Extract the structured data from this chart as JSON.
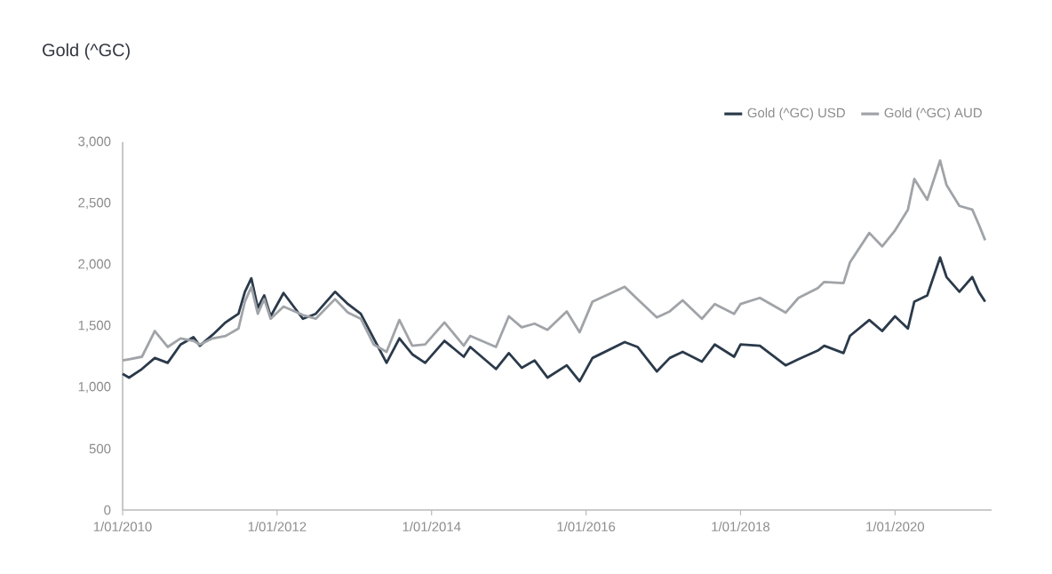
{
  "chart_data": {
    "type": "line",
    "title": "Gold (^GC)",
    "legend": "top right",
    "xlim": [
      "2010-01-01",
      "2021-04-01"
    ],
    "xticks": [
      {
        "value": "2010-01-01",
        "label": "1/01/2010"
      },
      {
        "value": "2012-01-01",
        "label": "1/01/2012"
      },
      {
        "value": "2014-01-01",
        "label": "1/01/2014"
      },
      {
        "value": "2016-01-01",
        "label": "1/01/2016"
      },
      {
        "value": "2018-01-01",
        "label": "1/01/2018"
      },
      {
        "value": "2020-01-01",
        "label": "1/01/2020"
      }
    ],
    "ylim": [
      0,
      3000
    ],
    "yticks": [
      0,
      500,
      {
        "value": 1000,
        "label": "1,000"
      },
      {
        "value": 1500,
        "label": "1,500"
      },
      {
        "value": 2000,
        "label": "2,000"
      },
      {
        "value": 2500,
        "label": "2,500"
      },
      {
        "value": 3000,
        "label": "3,000"
      }
    ],
    "x": [
      "2010-01",
      "2010-02",
      "2010-04",
      "2010-06",
      "2010-08",
      "2010-10",
      "2010-12",
      "2011-01",
      "2011-03",
      "2011-05",
      "2011-07",
      "2011-08",
      "2011-09",
      "2011-10",
      "2011-11",
      "2011-12",
      "2012-02",
      "2012-05",
      "2012-07",
      "2012-10",
      "2012-12",
      "2013-02",
      "2013-04",
      "2013-06",
      "2013-08",
      "2013-10",
      "2013-12",
      "2014-03",
      "2014-06",
      "2014-07",
      "2014-11",
      "2015-01",
      "2015-03",
      "2015-05",
      "2015-07",
      "2015-10",
      "2015-12",
      "2016-02",
      "2016-07",
      "2016-09",
      "2016-12",
      "2017-02",
      "2017-04",
      "2017-07",
      "2017-09",
      "2017-12",
      "2018-01",
      "2018-04",
      "2018-08",
      "2018-10",
      "2019-01",
      "2019-02",
      "2019-05",
      "2019-06",
      "2019-09",
      "2019-11",
      "2020-01",
      "2020-03",
      "2020-04",
      "2020-06",
      "2020-08",
      "2020-09",
      "2020-11",
      "2021-01",
      "2021-02",
      "2021-03"
    ],
    "series": [
      {
        "name": "Gold (^GC) USD",
        "color": "#2b3a4a",
        "values": [
          1110,
          1080,
          1150,
          1240,
          1200,
          1350,
          1410,
          1340,
          1430,
          1530,
          1600,
          1780,
          1890,
          1650,
          1750,
          1580,
          1770,
          1560,
          1600,
          1780,
          1680,
          1600,
          1400,
          1200,
          1400,
          1270,
          1200,
          1380,
          1250,
          1330,
          1150,
          1280,
          1160,
          1220,
          1080,
          1180,
          1050,
          1240,
          1370,
          1330,
          1130,
          1240,
          1290,
          1210,
          1350,
          1250,
          1350,
          1340,
          1180,
          1230,
          1300,
          1340,
          1280,
          1420,
          1550,
          1460,
          1580,
          1480,
          1700,
          1750,
          2060,
          1900,
          1780,
          1900,
          1780,
          1700
        ]
      },
      {
        "name": "Gold (^GC) AUD",
        "color": "#a0a4a8",
        "values": [
          1220,
          1230,
          1250,
          1460,
          1330,
          1400,
          1380,
          1350,
          1400,
          1420,
          1480,
          1700,
          1820,
          1600,
          1720,
          1560,
          1660,
          1590,
          1560,
          1720,
          1610,
          1560,
          1350,
          1290,
          1550,
          1340,
          1350,
          1530,
          1340,
          1420,
          1330,
          1580,
          1490,
          1520,
          1470,
          1620,
          1450,
          1700,
          1820,
          1720,
          1570,
          1620,
          1710,
          1560,
          1680,
          1600,
          1680,
          1730,
          1610,
          1730,
          1810,
          1860,
          1850,
          2020,
          2260,
          2150,
          2280,
          2450,
          2700,
          2530,
          2850,
          2650,
          2480,
          2450,
          2330,
          2200
        ]
      }
    ]
  }
}
